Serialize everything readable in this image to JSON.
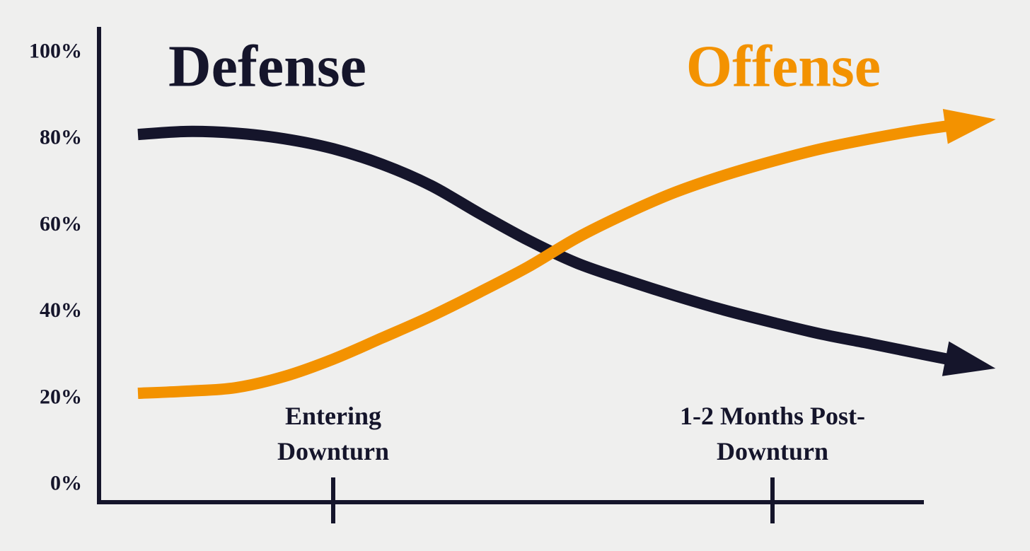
{
  "chart_data": {
    "type": "line",
    "categories": [
      null,
      null,
      null,
      null,
      "Entering Downturn",
      null,
      null,
      null,
      null,
      null,
      null,
      null,
      null,
      "1-2 Months Post-Downturn",
      null,
      null,
      null,
      null
    ],
    "series": [
      {
        "name": "Defense",
        "color": "#15152b",
        "values": [
          81.1,
          81.8,
          81.4,
          80.1,
          77.8,
          74.2,
          69.3,
          62.8,
          56.6,
          51.3,
          47.4,
          43.8,
          40.5,
          37.6,
          34.9,
          32.7,
          30.4,
          28.2
        ]
      },
      {
        "name": "Offense",
        "color": "#f39200",
        "values": [
          21.2,
          21.7,
          22.5,
          25.1,
          29.1,
          34.0,
          39.0,
          44.6,
          50.5,
          57.2,
          62.8,
          67.7,
          71.6,
          74.9,
          77.8,
          80.1,
          82.1,
          83.7
        ]
      }
    ],
    "ylim": [
      -4,
      106
    ],
    "yticks": [
      {
        "value": 0,
        "label": "0%"
      },
      {
        "value": 20,
        "label": "20%"
      },
      {
        "value": 40,
        "label": "40%"
      },
      {
        "value": 60,
        "label": "60%"
      },
      {
        "value": 80,
        "label": "80%"
      },
      {
        "value": 100,
        "label": "100%"
      }
    ],
    "grid": false
  }
}
